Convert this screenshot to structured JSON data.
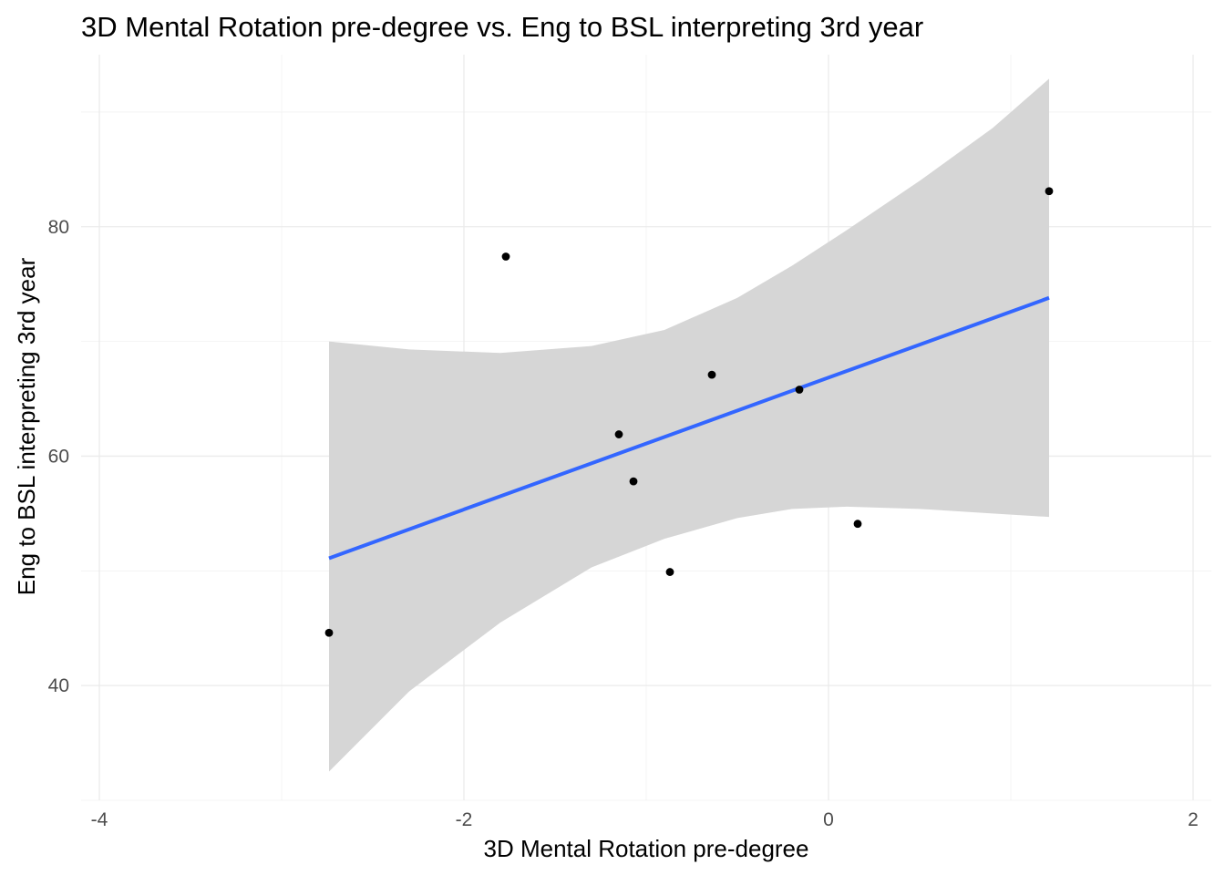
{
  "chart_data": {
    "type": "scatter",
    "title": "3D Mental Rotation pre-degree vs. Eng to BSL interpreting 3rd year",
    "xlabel": "3D Mental Rotation pre-degree",
    "ylabel": "Eng to BSL interpreting 3rd year",
    "xlim": [
      -4.1,
      2.1
    ],
    "ylim": [
      30,
      95
    ],
    "x_ticks": [
      -4,
      -2,
      0,
      2
    ],
    "x_tick_labels": [
      "-4",
      "-2",
      "0",
      "2"
    ],
    "y_ticks": [
      40,
      60,
      80
    ],
    "y_tick_labels": [
      "40",
      "60",
      "80"
    ],
    "grid": true,
    "legend": "none",
    "points": [
      {
        "x": -2.74,
        "y": 44.6
      },
      {
        "x": -1.77,
        "y": 77.4
      },
      {
        "x": -1.15,
        "y": 61.9
      },
      {
        "x": -1.07,
        "y": 57.8
      },
      {
        "x": -0.87,
        "y": 49.9
      },
      {
        "x": -0.64,
        "y": 67.1
      },
      {
        "x": -0.16,
        "y": 65.8
      },
      {
        "x": 0.16,
        "y": 54.1
      },
      {
        "x": 1.21,
        "y": 83.1
      }
    ],
    "fit_line": {
      "method": "linear",
      "color": "#3366FF",
      "x": [
        -2.74,
        1.21
      ],
      "y": [
        51.1,
        73.8
      ]
    },
    "confidence_band": {
      "color": "#d6d6d6",
      "x": [
        -2.74,
        -2.3,
        -1.8,
        -1.3,
        -0.9,
        -0.5,
        -0.2,
        0.1,
        0.5,
        0.9,
        1.21
      ],
      "lower": [
        32.5,
        39.5,
        45.5,
        50.3,
        52.8,
        54.6,
        55.4,
        55.6,
        55.4,
        55.0,
        54.7
      ],
      "upper": [
        70.0,
        69.3,
        69.0,
        69.6,
        71.0,
        73.8,
        76.6,
        79.7,
        84.0,
        88.6,
        92.9
      ]
    },
    "colors": {
      "points": "#000000",
      "fit_line": "#3366FF",
      "band": "#d6d6d6",
      "grid": "#ebebeb"
    }
  }
}
